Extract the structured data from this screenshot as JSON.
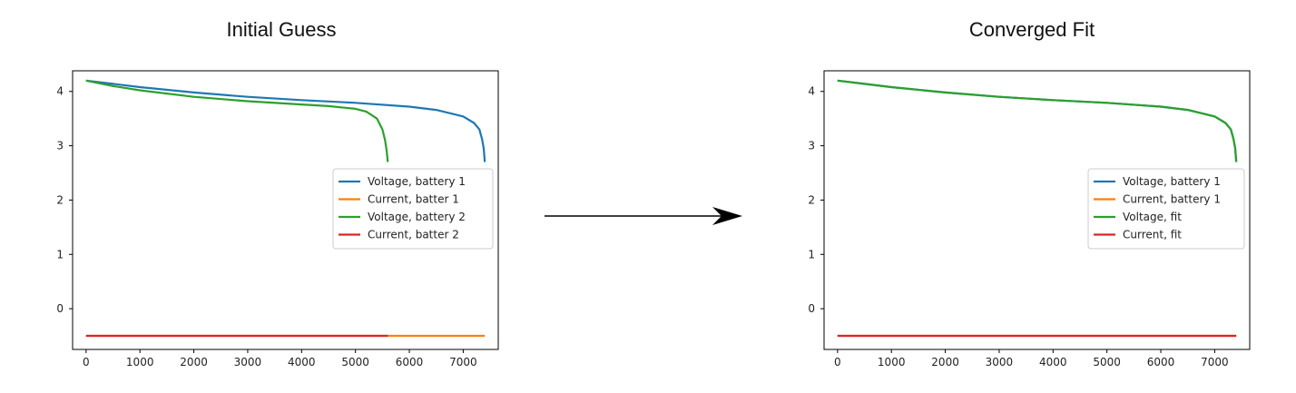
{
  "titles": {
    "left": "Initial Guess",
    "right": "Converged Fit"
  },
  "chart_data": [
    {
      "type": "line",
      "title": "Initial Guess",
      "xlabel": "",
      "ylabel": "",
      "xlim": [
        -250,
        7650
      ],
      "ylim": [
        -0.75,
        4.38
      ],
      "xticks": [
        0,
        1000,
        2000,
        3000,
        4000,
        5000,
        6000,
        7000
      ],
      "yticks": [
        0,
        1,
        2,
        3,
        4
      ],
      "grid": false,
      "legend_position": "center-right",
      "series": [
        {
          "name": "Voltage, battery 1",
          "color": "#1f77b4",
          "x": [
            0,
            500,
            1000,
            2000,
            3000,
            4000,
            5000,
            6000,
            6500,
            7000,
            7200,
            7300,
            7350,
            7380,
            7400
          ],
          "y": [
            4.2,
            4.14,
            4.08,
            3.98,
            3.9,
            3.84,
            3.79,
            3.72,
            3.66,
            3.54,
            3.42,
            3.3,
            3.12,
            2.95,
            2.7
          ]
        },
        {
          "name": "Current, batter 1",
          "color": "#ff7f0e",
          "x": [
            0,
            7400
          ],
          "y": [
            -0.5,
            -0.5
          ]
        },
        {
          "name": "Voltage, battery 2",
          "color": "#2ca02c",
          "x": [
            0,
            500,
            1000,
            2000,
            3000,
            4000,
            4500,
            5000,
            5200,
            5400,
            5500,
            5550,
            5580,
            5600
          ],
          "y": [
            4.2,
            4.1,
            4.02,
            3.9,
            3.82,
            3.76,
            3.73,
            3.68,
            3.63,
            3.5,
            3.3,
            3.1,
            2.9,
            2.7
          ]
        },
        {
          "name": "Current, batter 2",
          "color": "#d62728",
          "x": [
            0,
            5600
          ],
          "y": [
            -0.5,
            -0.5
          ]
        }
      ]
    },
    {
      "type": "line",
      "title": "Converged Fit",
      "xlabel": "",
      "ylabel": "",
      "xlim": [
        -250,
        7650
      ],
      "ylim": [
        -0.75,
        4.38
      ],
      "xticks": [
        0,
        1000,
        2000,
        3000,
        4000,
        5000,
        6000,
        7000
      ],
      "yticks": [
        0,
        1,
        2,
        3,
        4
      ],
      "grid": false,
      "legend_position": "center-right",
      "series": [
        {
          "name": "Voltage, battery 1",
          "color": "#1f77b4",
          "x": [
            0,
            500,
            1000,
            2000,
            3000,
            4000,
            5000,
            6000,
            6500,
            7000,
            7200,
            7300,
            7350,
            7380,
            7400
          ],
          "y": [
            4.2,
            4.14,
            4.08,
            3.98,
            3.9,
            3.84,
            3.79,
            3.72,
            3.66,
            3.54,
            3.42,
            3.3,
            3.12,
            2.95,
            2.7
          ]
        },
        {
          "name": "Current, battery 1",
          "color": "#ff7f0e",
          "x": [
            0,
            7400
          ],
          "y": [
            -0.5,
            -0.5
          ]
        },
        {
          "name": "Voltage, fit",
          "color": "#2ca02c",
          "x": [
            0,
            500,
            1000,
            2000,
            3000,
            4000,
            5000,
            6000,
            6500,
            7000,
            7200,
            7300,
            7350,
            7380,
            7400
          ],
          "y": [
            4.2,
            4.14,
            4.08,
            3.98,
            3.9,
            3.84,
            3.79,
            3.72,
            3.66,
            3.54,
            3.42,
            3.3,
            3.12,
            2.95,
            2.7
          ]
        },
        {
          "name": "Current, fit",
          "color": "#d62728",
          "x": [
            0,
            7400
          ],
          "y": [
            -0.5,
            -0.5
          ]
        }
      ]
    }
  ]
}
